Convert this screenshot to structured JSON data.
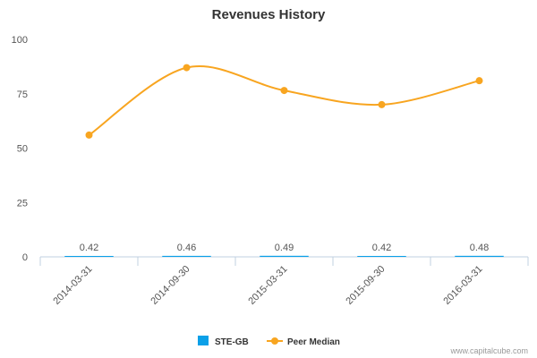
{
  "chart_data": {
    "type": "line",
    "title": "Revenues History",
    "categories": [
      "2014-03-31",
      "2014-09-30",
      "2015-03-31",
      "2015-09-30",
      "2016-03-31"
    ],
    "ylim": [
      0,
      100
    ],
    "yticks": [
      0,
      25,
      50,
      75,
      100
    ],
    "grid": false,
    "series": [
      {
        "name": "STE-GB",
        "type": "bar",
        "values": [
          0.42,
          0.46,
          0.49,
          0.42,
          0.48
        ],
        "color": "#0ba0e8"
      },
      {
        "name": "Peer Median",
        "type": "line",
        "values": [
          56,
          87,
          76.5,
          70,
          81
        ],
        "color": "#f8a520"
      }
    ],
    "data_labels": [
      "0.42",
      "0.46",
      "0.49",
      "0.42",
      "0.48"
    ],
    "legend_position": "bottom-center"
  },
  "credit": "www.capitalcube.com"
}
